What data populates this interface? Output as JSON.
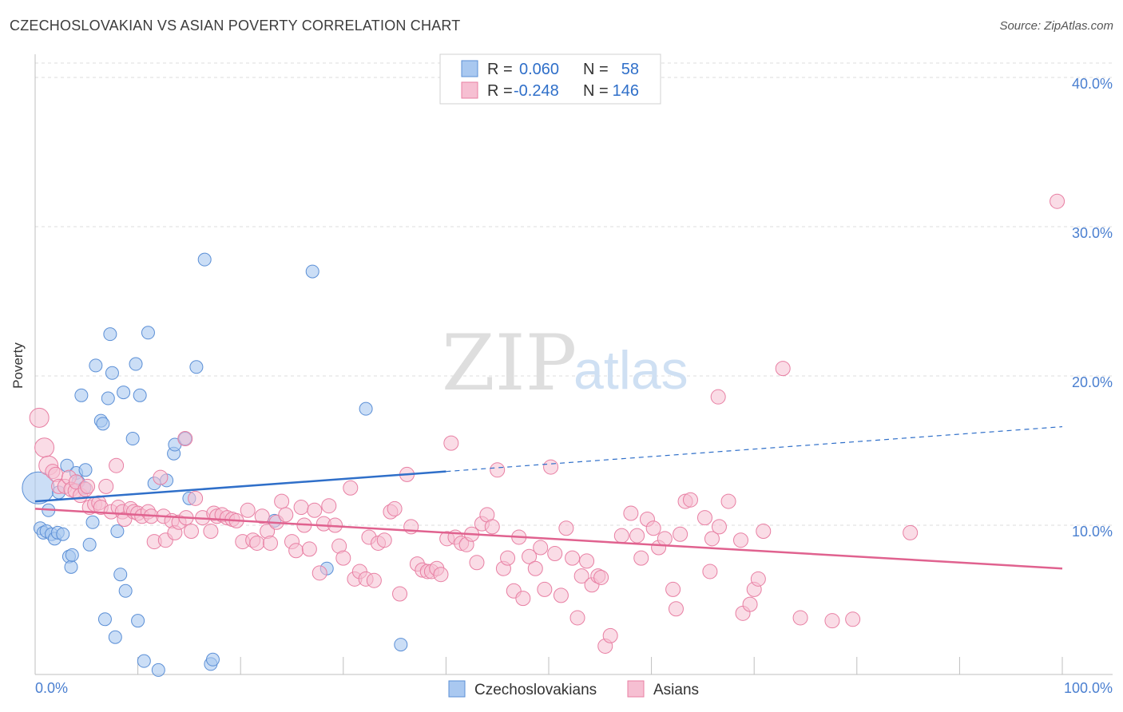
{
  "header": {
    "title": "CZECHOSLOVAKIAN VS ASIAN POVERTY CORRELATION CHART",
    "source": "Source: ZipAtlas.com"
  },
  "legend": {
    "row1": {
      "r_label": "R =",
      "r_value": "0.060",
      "n_label": "N =",
      "n_value": "58"
    },
    "row2": {
      "r_label": "R =",
      "r_value": "-0.248",
      "n_label": "N =",
      "n_value": "146"
    }
  },
  "watermark": {
    "zip": "ZIP",
    "atlas": "atlas"
  },
  "colors": {
    "blue_fill": "#a9c8f0",
    "blue_stroke": "#5b8fd6",
    "blue_line": "#2f6fc9",
    "pink_fill": "#f6bfd2",
    "pink_stroke": "#e87fa3",
    "pink_line": "#e0628f",
    "axis_text": "#4a7fd0",
    "grid": "#dcdcdc"
  },
  "chart_data": {
    "type": "scatter",
    "title": "CZECHOSLOVAKIAN VS ASIAN POVERTY CORRELATION CHART",
    "xlabel": "",
    "ylabel": "Poverty",
    "xlim": [
      0,
      100
    ],
    "ylim": [
      0,
      40
    ],
    "x_tick_labels": [
      "0.0%",
      "100.0%"
    ],
    "y_ticks": [
      10,
      20,
      30,
      40
    ],
    "y_tick_labels": [
      "10.0%",
      "20.0%",
      "30.0%",
      "40.0%"
    ],
    "grid": true,
    "legend_position": "top-center",
    "series": [
      {
        "name": "Czechoslovakians",
        "r": 0.06,
        "n": 58,
        "trend": {
          "x0": 0,
          "y0": 11.6,
          "x1": 40,
          "y1": 13.6,
          "dashed_to_x": 100,
          "dashed_to_y": 16.6
        },
        "points": [
          [
            0.3,
            12.5
          ],
          [
            0.5,
            9.8
          ],
          [
            0.8,
            9.5
          ],
          [
            1.1,
            9.6
          ],
          [
            1.3,
            11.0
          ],
          [
            1.6,
            9.4
          ],
          [
            1.9,
            9.1
          ],
          [
            2.2,
            9.5
          ],
          [
            2.3,
            12.2
          ],
          [
            2.7,
            9.4
          ],
          [
            3.1,
            14.0
          ],
          [
            3.3,
            7.9
          ],
          [
            3.5,
            7.2
          ],
          [
            3.6,
            8.0
          ],
          [
            4.0,
            13.5
          ],
          [
            4.2,
            12.9
          ],
          [
            4.5,
            18.7
          ],
          [
            4.8,
            12.5
          ],
          [
            4.9,
            13.7
          ],
          [
            5.3,
            8.7
          ],
          [
            5.6,
            10.2
          ],
          [
            5.9,
            20.7
          ],
          [
            6.4,
            17.0
          ],
          [
            6.6,
            16.8
          ],
          [
            6.8,
            3.7
          ],
          [
            7.1,
            18.5
          ],
          [
            7.3,
            22.8
          ],
          [
            7.5,
            20.2
          ],
          [
            7.8,
            2.5
          ],
          [
            8.0,
            9.6
          ],
          [
            8.3,
            6.7
          ],
          [
            8.6,
            18.9
          ],
          [
            8.8,
            5.6
          ],
          [
            9.5,
            15.8
          ],
          [
            9.8,
            20.8
          ],
          [
            10.0,
            3.6
          ],
          [
            10.2,
            18.7
          ],
          [
            10.6,
            0.9
          ],
          [
            11.0,
            22.9
          ],
          [
            11.6,
            12.8
          ],
          [
            12.0,
            0.3
          ],
          [
            12.8,
            13.0
          ],
          [
            13.5,
            14.8
          ],
          [
            13.6,
            15.4
          ],
          [
            14.6,
            15.8
          ],
          [
            15.0,
            11.8
          ],
          [
            15.7,
            20.6
          ],
          [
            16.5,
            27.8
          ],
          [
            17.1,
            0.7
          ],
          [
            17.3,
            1.0
          ],
          [
            23.3,
            10.3
          ],
          [
            27.0,
            27.0
          ],
          [
            28.4,
            7.1
          ],
          [
            32.2,
            17.8
          ],
          [
            35.6,
            2.0
          ]
        ]
      },
      {
        "name": "Asians",
        "r": -0.248,
        "n": 146,
        "trend": {
          "x0": 0,
          "y0": 11.1,
          "x1": 100,
          "y1": 7.1
        },
        "points": [
          [
            0.4,
            17.2
          ],
          [
            0.9,
            15.2
          ],
          [
            1.3,
            14.0
          ],
          [
            1.7,
            13.6
          ],
          [
            2.0,
            13.4
          ],
          [
            2.3,
            12.6
          ],
          [
            2.9,
            12.6
          ],
          [
            3.3,
            13.2
          ],
          [
            3.5,
            12.4
          ],
          [
            3.9,
            12.3
          ],
          [
            4.0,
            12.9
          ],
          [
            4.4,
            12.0
          ],
          [
            4.9,
            12.4
          ],
          [
            5.1,
            12.6
          ],
          [
            5.3,
            11.2
          ],
          [
            5.8,
            11.4
          ],
          [
            6.2,
            11.5
          ],
          [
            6.4,
            11.2
          ],
          [
            6.9,
            12.6
          ],
          [
            7.4,
            10.9
          ],
          [
            7.9,
            14.0
          ],
          [
            8.1,
            11.2
          ],
          [
            8.5,
            10.9
          ],
          [
            8.7,
            10.4
          ],
          [
            9.3,
            11.1
          ],
          [
            9.6,
            10.9
          ],
          [
            10.0,
            10.8
          ],
          [
            10.4,
            10.6
          ],
          [
            11.0,
            10.9
          ],
          [
            11.3,
            10.6
          ],
          [
            11.6,
            8.9
          ],
          [
            12.2,
            13.2
          ],
          [
            12.5,
            10.6
          ],
          [
            12.7,
            9.0
          ],
          [
            13.3,
            10.3
          ],
          [
            13.6,
            9.5
          ],
          [
            14.0,
            10.2
          ],
          [
            14.6,
            15.8
          ],
          [
            14.7,
            10.5
          ],
          [
            15.2,
            9.6
          ],
          [
            15.6,
            11.8
          ],
          [
            16.3,
            10.5
          ],
          [
            17.1,
            9.6
          ],
          [
            17.4,
            10.8
          ],
          [
            17.7,
            10.6
          ],
          [
            18.2,
            10.7
          ],
          [
            18.7,
            10.5
          ],
          [
            19.2,
            10.4
          ],
          [
            19.6,
            10.3
          ],
          [
            20.2,
            8.9
          ],
          [
            20.7,
            11.0
          ],
          [
            21.2,
            9.0
          ],
          [
            21.6,
            8.8
          ],
          [
            22.1,
            10.6
          ],
          [
            22.6,
            9.6
          ],
          [
            22.9,
            8.8
          ],
          [
            23.5,
            10.2
          ],
          [
            24.0,
            11.6
          ],
          [
            24.4,
            10.7
          ],
          [
            25.0,
            8.9
          ],
          [
            25.4,
            8.3
          ],
          [
            25.9,
            11.2
          ],
          [
            26.2,
            10.0
          ],
          [
            26.7,
            8.4
          ],
          [
            27.2,
            11.0
          ],
          [
            27.7,
            6.8
          ],
          [
            28.1,
            10.1
          ],
          [
            28.6,
            11.3
          ],
          [
            29.2,
            10.0
          ],
          [
            29.6,
            8.6
          ],
          [
            30.0,
            7.8
          ],
          [
            30.7,
            12.5
          ],
          [
            31.1,
            6.4
          ],
          [
            31.6,
            6.9
          ],
          [
            32.2,
            6.4
          ],
          [
            32.5,
            9.2
          ],
          [
            33.0,
            6.3
          ],
          [
            33.4,
            8.8
          ],
          [
            34.0,
            9.0
          ],
          [
            34.6,
            10.9
          ],
          [
            35.0,
            11.1
          ],
          [
            35.5,
            5.4
          ],
          [
            36.2,
            13.4
          ],
          [
            36.6,
            9.9
          ],
          [
            37.2,
            7.4
          ],
          [
            37.7,
            7.0
          ],
          [
            38.2,
            6.9
          ],
          [
            38.6,
            6.9
          ],
          [
            39.1,
            7.1
          ],
          [
            39.5,
            6.7
          ],
          [
            40.1,
            9.1
          ],
          [
            40.5,
            15.5
          ],
          [
            40.9,
            9.2
          ],
          [
            41.5,
            8.8
          ],
          [
            42.0,
            8.7
          ],
          [
            42.5,
            9.4
          ],
          [
            43.0,
            7.5
          ],
          [
            43.5,
            10.1
          ],
          [
            44.0,
            10.7
          ],
          [
            44.5,
            9.9
          ],
          [
            45.0,
            13.7
          ],
          [
            45.6,
            7.1
          ],
          [
            46.0,
            7.8
          ],
          [
            46.6,
            5.6
          ],
          [
            47.1,
            9.2
          ],
          [
            47.5,
            5.1
          ],
          [
            48.1,
            7.9
          ],
          [
            48.7,
            7.1
          ],
          [
            49.2,
            8.5
          ],
          [
            49.6,
            5.7
          ],
          [
            50.2,
            13.9
          ],
          [
            50.6,
            8.1
          ],
          [
            51.2,
            5.3
          ],
          [
            51.7,
            9.8
          ],
          [
            52.3,
            7.8
          ],
          [
            52.8,
            3.8
          ],
          [
            53.2,
            6.6
          ],
          [
            53.7,
            7.6
          ],
          [
            54.2,
            6.0
          ],
          [
            54.8,
            6.6
          ],
          [
            55.1,
            6.5
          ],
          [
            55.5,
            1.9
          ],
          [
            56.0,
            2.6
          ],
          [
            57.1,
            9.3
          ],
          [
            58.0,
            10.8
          ],
          [
            58.6,
            9.3
          ],
          [
            59.0,
            7.8
          ],
          [
            59.6,
            10.4
          ],
          [
            60.2,
            9.8
          ],
          [
            60.7,
            8.5
          ],
          [
            61.3,
            9.1
          ],
          [
            62.1,
            5.7
          ],
          [
            62.4,
            4.4
          ],
          [
            62.8,
            9.4
          ],
          [
            63.3,
            11.6
          ],
          [
            63.8,
            11.7
          ],
          [
            65.2,
            10.5
          ],
          [
            65.7,
            6.9
          ],
          [
            65.9,
            9.1
          ],
          [
            66.5,
            18.6
          ],
          [
            66.6,
            9.9
          ],
          [
            67.5,
            11.6
          ],
          [
            68.7,
            9.0
          ],
          [
            68.9,
            4.1
          ],
          [
            69.6,
            4.7
          ],
          [
            70.0,
            5.7
          ],
          [
            70.4,
            6.4
          ],
          [
            70.9,
            9.6
          ],
          [
            72.8,
            20.5
          ],
          [
            74.5,
            3.8
          ],
          [
            77.6,
            3.6
          ],
          [
            79.6,
            3.7
          ],
          [
            85.2,
            9.5
          ],
          [
            99.5,
            31.7
          ]
        ]
      }
    ]
  },
  "bottom_legend": {
    "item1": "Czechoslovakians",
    "item2": "Asians"
  }
}
